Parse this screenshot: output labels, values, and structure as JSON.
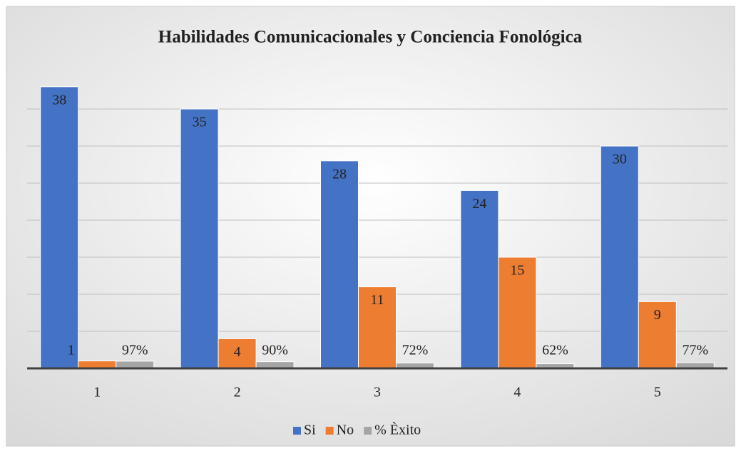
{
  "chart_data": {
    "type": "bar",
    "title": "Habilidades  Comunicacionales  y Conciencia  Fonológica",
    "categories": [
      "1",
      "2",
      "3",
      "4",
      "5"
    ],
    "series": [
      {
        "name": "Si",
        "color": "#4472c4",
        "values": [
          38,
          35,
          28,
          24,
          30
        ]
      },
      {
        "name": "No",
        "color": "#ed7d31",
        "values": [
          1,
          4,
          11,
          15,
          9
        ]
      },
      {
        "name": "% Èxito",
        "color": "#a5a5a5",
        "values": [
          0.97,
          0.9,
          0.72,
          0.62,
          0.77
        ],
        "value_labels": [
          "97%",
          "90%",
          "72%",
          "62%",
          "77%"
        ]
      }
    ],
    "ylim": [
      0,
      40
    ],
    "yticks": [
      0,
      5,
      10,
      15,
      20,
      25,
      30,
      35
    ],
    "ytick_labels": false,
    "grid": true,
    "legend": "bottom"
  }
}
